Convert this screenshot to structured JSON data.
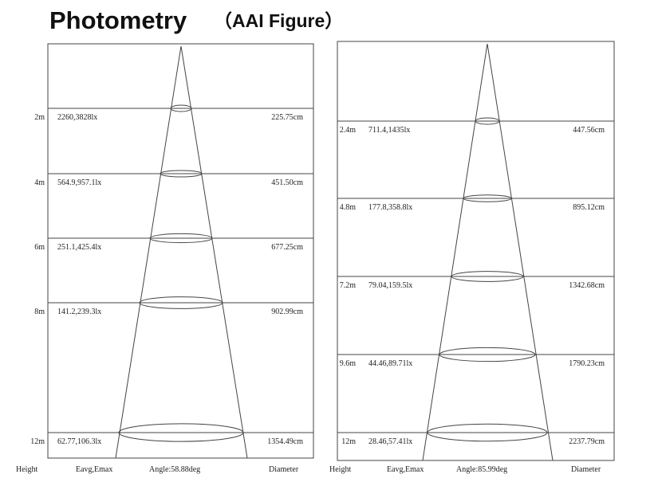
{
  "title": "Photometry",
  "subtitle": "（AAI Figure）",
  "panels": [
    {
      "rows": [
        {
          "height": "2m",
          "lux": "2260,3828lx",
          "diameter": "225.75cm"
        },
        {
          "height": "4m",
          "lux": "564.9,957.1lx",
          "diameter": "451.50cm"
        },
        {
          "height": "6m",
          "lux": "251.1,425.4lx",
          "diameter": "677.25cm"
        },
        {
          "height": "8m",
          "lux": "141.2,239.3lx",
          "diameter": "902.99cm"
        },
        {
          "height": "12m",
          "lux": "62.77,106.3lx",
          "diameter": "1354.49cm"
        }
      ],
      "footer": {
        "height": "Height",
        "lux": "Eavg,Emax",
        "angle": "Angle:58.88deg",
        "diameter": "Diameter"
      }
    },
    {
      "rows": [
        {
          "height": "2.4m",
          "lux": "711.4,1435lx",
          "diameter": "447.56cm"
        },
        {
          "height": "4.8m",
          "lux": "177.8,358.8lx",
          "diameter": "895.12cm"
        },
        {
          "height": "7.2m",
          "lux": "79.04,159.5lx",
          "diameter": "1342.68cm"
        },
        {
          "height": "9.6m",
          "lux": "44.46,89.71lx",
          "diameter": "1790.23cm"
        },
        {
          "height": "12m",
          "lux": "28.46,57.41lx",
          "diameter": "2237.79cm"
        }
      ],
      "footer": {
        "height": "Height",
        "lux": "Eavg,Emax",
        "angle": "Angle:85.99deg",
        "diameter": "Diameter"
      }
    }
  ]
}
